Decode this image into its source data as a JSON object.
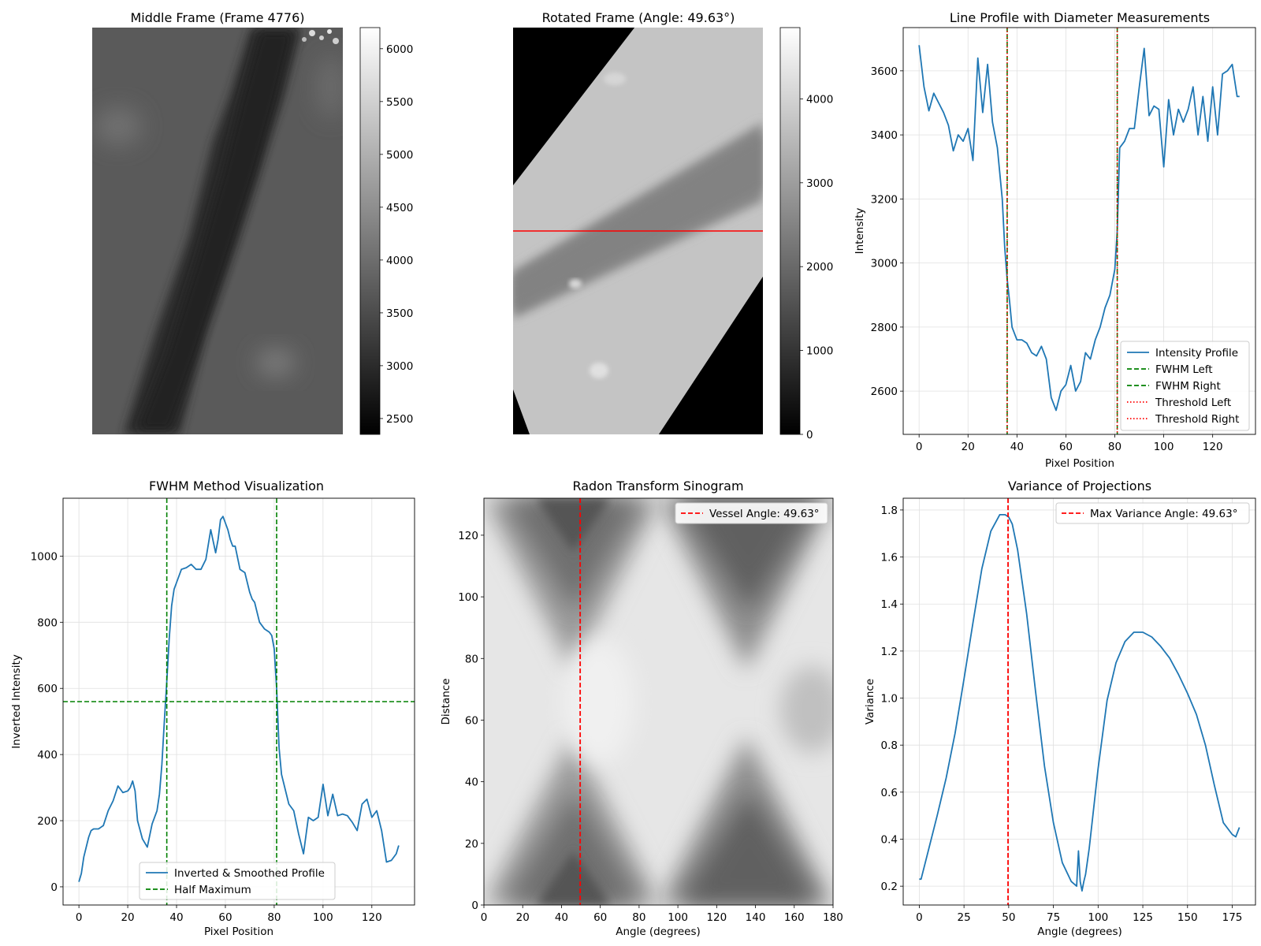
{
  "chart_data": [
    {
      "id": "middle",
      "type": "heatmap",
      "title": "Middle Frame (Frame 4776)",
      "colorbar": {
        "ticks": [
          2500,
          3000,
          3500,
          4000,
          4500,
          5000,
          5500,
          6000
        ],
        "range": [
          2350,
          6200
        ]
      },
      "vessel": {
        "direction": "top-right to bottom-left",
        "dark": true
      }
    },
    {
      "id": "rotated",
      "type": "heatmap",
      "title": "Rotated Frame (Angle: 49.63°)",
      "colorbar": {
        "ticks": [
          0,
          1000,
          2000,
          3000,
          4000
        ],
        "range": [
          0,
          4850
        ]
      },
      "line_profile_marker": {
        "color": "#ff0000",
        "orientation": "horizontal"
      }
    },
    {
      "id": "profile",
      "type": "line",
      "title": "Line Profile with Diameter Measurements",
      "xlabel": "Pixel Position",
      "ylabel": "Intensity",
      "xlim": [
        -6.5,
        137.5
      ],
      "ylim": [
        2465,
        3735
      ],
      "xticks": [
        0,
        20,
        40,
        60,
        80,
        100,
        120
      ],
      "yticks": [
        2600,
        2800,
        3000,
        3200,
        3400,
        3600
      ],
      "series": [
        {
          "name": "Intensity Profile",
          "color": "#1f77b4",
          "x": [
            0,
            2,
            4,
            6,
            8,
            10,
            12,
            14,
            16,
            18,
            20,
            22,
            24,
            26,
            28,
            30,
            32,
            34,
            35,
            36,
            37,
            38,
            40,
            42,
            44,
            46,
            48,
            50,
            52,
            54,
            56,
            58,
            60,
            62,
            64,
            66,
            68,
            70,
            72,
            74,
            76,
            78,
            80,
            81,
            82,
            84,
            86,
            88,
            90,
            92,
            94,
            96,
            98,
            100,
            102,
            104,
            106,
            108,
            110,
            112,
            114,
            116,
            118,
            120,
            122,
            124,
            126,
            128,
            130,
            131
          ],
          "y": [
            3680,
            3550,
            3475,
            3530,
            3500,
            3470,
            3430,
            3350,
            3400,
            3380,
            3420,
            3320,
            3640,
            3470,
            3620,
            3440,
            3360,
            3200,
            3050,
            2950,
            2880,
            2800,
            2760,
            2760,
            2750,
            2720,
            2710,
            2740,
            2700,
            2580,
            2540,
            2600,
            2620,
            2680,
            2600,
            2630,
            2720,
            2700,
            2760,
            2800,
            2860,
            2900,
            2980,
            3100,
            3360,
            3380,
            3420,
            3420,
            3550,
            3670,
            3460,
            3490,
            3480,
            3300,
            3510,
            3400,
            3480,
            3440,
            3480,
            3550,
            3400,
            3520,
            3380,
            3550,
            3400,
            3590,
            3600,
            3620,
            3520,
            3520
          ]
        },
        {
          "name": "FWHM Left",
          "color": "#008000",
          "dash": "dashed",
          "x": 36
        },
        {
          "name": "FWHM Right",
          "color": "#008000",
          "dash": "dashed",
          "x": 81
        },
        {
          "name": "Threshold Left",
          "color": "#ff0000",
          "dash": "dotted",
          "x": 36
        },
        {
          "name": "Threshold Right",
          "color": "#ff0000",
          "dash": "dotted",
          "x": 81
        }
      ],
      "legend": "lower-right"
    },
    {
      "id": "fwhm",
      "type": "line",
      "title": "FWHM Method Visualization",
      "xlabel": "Pixel Position",
      "ylabel": "Inverted Intensity",
      "xlim": [
        -6.5,
        137.5
      ],
      "ylim": [
        -55,
        1175
      ],
      "xticks": [
        0,
        20,
        40,
        60,
        80,
        100,
        120
      ],
      "yticks": [
        0,
        200,
        400,
        600,
        800,
        1000
      ],
      "series": [
        {
          "name": "Inverted & Smoothed Profile",
          "color": "#1f77b4",
          "x": [
            0,
            1,
            2,
            4,
            5,
            6,
            8,
            10,
            12,
            14,
            16,
            18,
            20,
            21,
            22,
            23,
            24,
            26,
            28,
            30,
            32,
            33,
            34,
            35,
            36,
            37,
            38,
            39,
            40,
            42,
            44,
            46,
            48,
            50,
            52,
            54,
            56,
            57,
            58,
            59,
            60,
            61,
            62,
            63,
            64,
            66,
            68,
            70,
            71,
            72,
            74,
            76,
            78,
            79,
            80,
            81,
            82,
            83,
            84,
            86,
            88,
            90,
            92,
            94,
            96,
            98,
            100,
            102,
            104,
            106,
            108,
            110,
            112,
            114,
            116,
            118,
            120,
            122,
            124,
            126,
            128,
            130,
            131
          ],
          "y": [
            15,
            40,
            90,
            150,
            170,
            175,
            175,
            185,
            230,
            260,
            305,
            285,
            290,
            300,
            320,
            290,
            200,
            145,
            120,
            190,
            230,
            280,
            370,
            500,
            620,
            750,
            850,
            900,
            920,
            960,
            965,
            975,
            960,
            960,
            990,
            1080,
            1010,
            1050,
            1110,
            1120,
            1100,
            1080,
            1050,
            1030,
            1030,
            960,
            950,
            890,
            870,
            860,
            800,
            780,
            770,
            760,
            720,
            600,
            420,
            340,
            310,
            250,
            230,
            160,
            100,
            210,
            200,
            210,
            310,
            215,
            280,
            215,
            220,
            215,
            195,
            170,
            250,
            265,
            210,
            230,
            170,
            75,
            80,
            100,
            125
          ]
        },
        {
          "name": "Half Maximum",
          "color": "#008000",
          "dash": "dashed",
          "y": 560
        }
      ],
      "vlines": [
        36,
        81
      ],
      "legend": "lower-center"
    },
    {
      "id": "radon",
      "type": "heatmap",
      "title": "Radon Transform Sinogram",
      "xlabel": "Angle (degrees)",
      "ylabel": "Distance",
      "xlim": [
        0,
        180
      ],
      "ylim": [
        0,
        132
      ],
      "xticks": [
        0,
        20,
        40,
        60,
        80,
        100,
        120,
        140,
        160,
        180
      ],
      "yticks": [
        0,
        20,
        40,
        60,
        80,
        100,
        120
      ],
      "series": [
        {
          "name": "Vessel Angle: 49.63°",
          "color": "#ff0000",
          "dash": "dashed",
          "x": 49.63
        }
      ],
      "legend": "upper-right"
    },
    {
      "id": "variance",
      "type": "line",
      "title": "Variance of Projections",
      "xlabel": "Angle (degrees)",
      "ylabel": "Variance",
      "xlim": [
        -9,
        188
      ],
      "ylim": [
        0.12,
        1.85
      ],
      "xticks": [
        0,
        25,
        50,
        75,
        100,
        125,
        150,
        175
      ],
      "yticks": [
        0.2,
        0.4,
        0.6,
        0.8,
        1.0,
        1.2,
        1.4,
        1.6,
        1.8
      ],
      "series": [
        {
          "name": "Variance",
          "color": "#1f77b4",
          "x": [
            0,
            1,
            5,
            10,
            15,
            20,
            25,
            30,
            35,
            40,
            45,
            48,
            50,
            52,
            55,
            60,
            65,
            70,
            75,
            80,
            85,
            88,
            89,
            90,
            91,
            92,
            93,
            95,
            100,
            105,
            110,
            115,
            120,
            125,
            130,
            135,
            140,
            145,
            150,
            155,
            160,
            165,
            170,
            175,
            177,
            178,
            179
          ],
          "y": [
            0.23,
            0.23,
            0.35,
            0.5,
            0.66,
            0.85,
            1.08,
            1.32,
            1.55,
            1.71,
            1.78,
            1.78,
            1.77,
            1.74,
            1.63,
            1.36,
            1.03,
            0.71,
            0.47,
            0.3,
            0.22,
            0.2,
            0.35,
            0.22,
            0.18,
            0.22,
            0.25,
            0.36,
            0.7,
            0.99,
            1.15,
            1.24,
            1.28,
            1.28,
            1.26,
            1.22,
            1.17,
            1.1,
            1.02,
            0.93,
            0.8,
            0.63,
            0.47,
            0.42,
            0.41,
            0.43,
            0.45
          ]
        },
        {
          "name": "Max Variance Angle: 49.63°",
          "color": "#ff0000",
          "dash": "dashed",
          "x": 49.63
        }
      ],
      "legend": "upper-right"
    }
  ]
}
